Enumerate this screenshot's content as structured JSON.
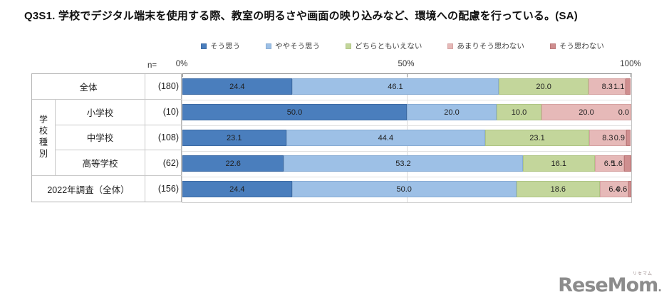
{
  "title": "Q3S1. 学校でデジタル端末を使用する際、教室の明るさや画面の映り込みなど、環境への配慮を行っている。(SA)",
  "axis": {
    "n_label": "n=",
    "ticks": [
      "0%",
      "50%",
      "100%"
    ]
  },
  "chart_data": {
    "type": "bar",
    "stacked": true,
    "orientation": "horizontal",
    "title": "Q3S1. 学校でデジタル端末を使用する際、教室の明るさや画面の映り込みなど、環境への配慮を行っている。(SA)",
    "xlim": [
      0,
      100
    ],
    "legend_position": "top",
    "grid": "vertical-50-percent",
    "group_label": "学校種別",
    "categories": [
      "全体",
      "小学校",
      "中学校",
      "高等学校",
      "2022年調査（全体）"
    ],
    "n_values": [
      "(180)",
      "(10)",
      "(108)",
      "(62)",
      "(156)"
    ],
    "series": [
      {
        "name": "そう思う",
        "color": "#4A7EBD",
        "border": "#3E6CA5",
        "values": [
          24.4,
          50.0,
          23.1,
          22.6,
          24.4
        ]
      },
      {
        "name": "ややそう思う",
        "color": "#9DC0E6",
        "border": "#88ACD4",
        "values": [
          46.1,
          20.0,
          44.4,
          53.2,
          50.0
        ]
      },
      {
        "name": "どちらともいえない",
        "color": "#C3D69B",
        "border": "#AFC584",
        "values": [
          20.0,
          10.0,
          23.1,
          16.1,
          18.6
        ]
      },
      {
        "name": "あまりそう思わない",
        "color": "#E6B9B8",
        "border": "#D5A2A1",
        "values": [
          8.3,
          20.0,
          8.3,
          6.5,
          6.4
        ]
      },
      {
        "name": "そう思わない",
        "color": "#CF8E8F",
        "border": "#BC7879",
        "values": [
          1.1,
          0.0,
          0.9,
          1.6,
          0.6
        ]
      }
    ]
  },
  "logo": {
    "text": "ReseMom",
    "dot": ".",
    "ruby": "リセマム"
  }
}
